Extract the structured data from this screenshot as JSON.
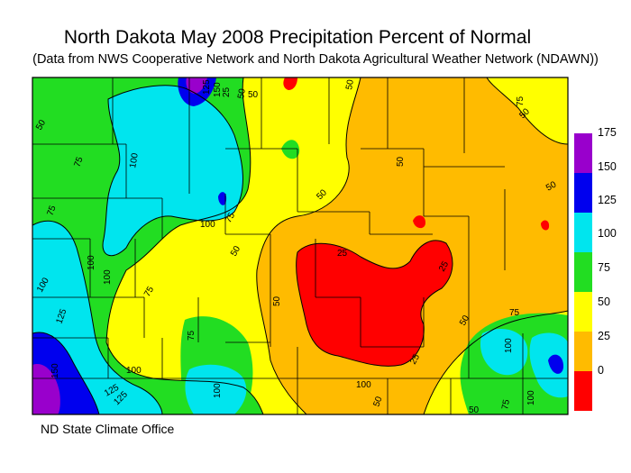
{
  "title": "North Dakota May 2008 Precipitation Percent of Normal",
  "subtitle": "(Data from NWS Cooperative Network and North Dakota Agricultural Weather Network (NDAWN))",
  "credit": "ND State Climate Office",
  "legend": {
    "ticks": [
      "175",
      "150",
      "125",
      "100",
      "75",
      "50",
      "25",
      "0"
    ],
    "bins": [
      {
        "from": 150,
        "to": 175,
        "color": "#9900cc"
      },
      {
        "from": 125,
        "to": 150,
        "color": "#0000ee"
      },
      {
        "from": 100,
        "to": 125,
        "color": "#00e5ee"
      },
      {
        "from": 75,
        "to": 100,
        "color": "#22dd22"
      },
      {
        "from": 50,
        "to": 75,
        "color": "#ffff00"
      },
      {
        "from": 25,
        "to": 50,
        "color": "#ffbb00"
      },
      {
        "from": 0,
        "to": 25,
        "color": "#ff0000"
      }
    ]
  },
  "contour_labels": [
    "50",
    "75",
    "100",
    "125",
    "150",
    "25",
    "50",
    "75",
    "100",
    "50",
    "75",
    "100",
    "125",
    "100",
    "75",
    "50",
    "50",
    "25",
    "25",
    "25",
    "50",
    "75",
    "100",
    "100",
    "50",
    "75",
    "50",
    "100",
    "125",
    "150",
    "100",
    "75",
    "50",
    "50",
    "50",
    "75",
    "100",
    "125",
    "100",
    "50",
    "50"
  ]
}
